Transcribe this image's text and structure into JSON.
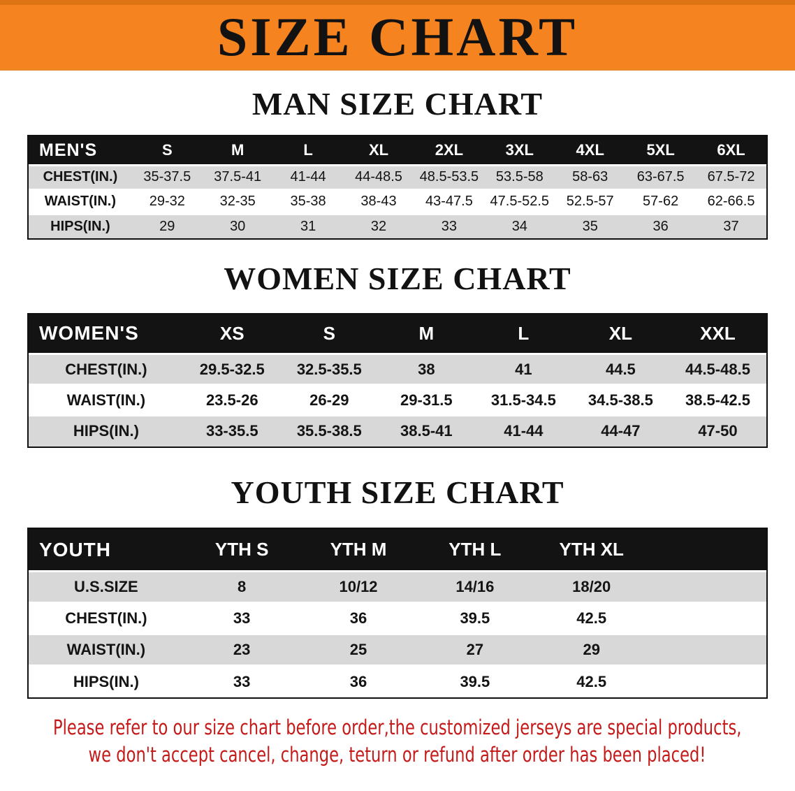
{
  "banner": {
    "title": "SIZE CHART"
  },
  "colors": {
    "accent_orange": "#f5831f",
    "header_black": "#131313",
    "row_gray": "#d8d8d8",
    "disclaimer_red": "#c51a1a"
  },
  "sections": [
    {
      "heading": "MAN SIZE CHART",
      "table": {
        "label": "MEN'S",
        "columns": [
          "S",
          "M",
          "L",
          "XL",
          "2XL",
          "3XL",
          "4XL",
          "5XL",
          "6XL"
        ],
        "rows": [
          {
            "label": "CHEST(IN.)",
            "values": [
              "35-37.5",
              "37.5-41",
              "41-44",
              "44-48.5",
              "48.5-53.5",
              "53.5-58",
              "58-63",
              "63-67.5",
              "67.5-72"
            ]
          },
          {
            "label": "WAIST(IN.)",
            "values": [
              "29-32",
              "32-35",
              "35-38",
              "38-43",
              "43-47.5",
              "47.5-52.5",
              "52.5-57",
              "57-62",
              "62-66.5"
            ]
          },
          {
            "label": "HIPS(IN.)",
            "values": [
              "29",
              "30",
              "31",
              "32",
              "33",
              "34",
              "35",
              "36",
              "37"
            ]
          }
        ]
      }
    },
    {
      "heading": "WOMEN SIZE CHART",
      "table": {
        "label": "WOMEN'S",
        "columns": [
          "XS",
          "S",
          "M",
          "L",
          "XL",
          "XXL"
        ],
        "rows": [
          {
            "label": "CHEST(IN.)",
            "values": [
              "29.5-32.5",
              "32.5-35.5",
              "38",
              "41",
              "44.5",
              "44.5-48.5"
            ]
          },
          {
            "label": "WAIST(IN.)",
            "values": [
              "23.5-26",
              "26-29",
              "29-31.5",
              "31.5-34.5",
              "34.5-38.5",
              "38.5-42.5"
            ]
          },
          {
            "label": "HIPS(IN.)",
            "values": [
              "33-35.5",
              "35.5-38.5",
              "38.5-41",
              "41-44",
              "44-47",
              "47-50"
            ]
          }
        ]
      }
    },
    {
      "heading": "YOUTH SIZE CHART",
      "table": {
        "label": "YOUTH",
        "columns": [
          "YTH S",
          "YTH M",
          "YTH L",
          "YTH XL"
        ],
        "rows": [
          {
            "label": "U.S.SIZE",
            "values": [
              "8",
              "10/12",
              "14/16",
              "18/20"
            ]
          },
          {
            "label": "CHEST(IN.)",
            "values": [
              "33",
              "36",
              "39.5",
              "42.5"
            ]
          },
          {
            "label": "WAIST(IN.)",
            "values": [
              "23",
              "25",
              "27",
              "29"
            ]
          },
          {
            "label": "HIPS(IN.)",
            "values": [
              "33",
              "36",
              "39.5",
              "42.5"
            ]
          }
        ]
      }
    }
  ],
  "disclaimer": {
    "line1": "Please refer to our size chart before order,the customized jerseys are special products,",
    "line2": "we don't accept cancel, change, teturn or refund after order has been placed!"
  }
}
